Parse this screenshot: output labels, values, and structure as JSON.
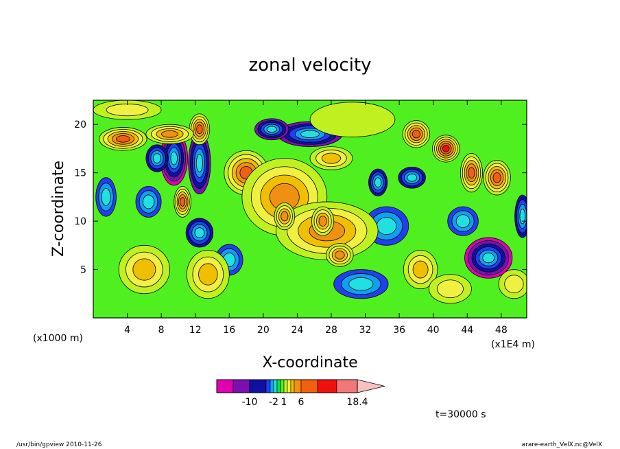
{
  "chart_data": {
    "type": "heatmap",
    "title": "zonal velocity",
    "xlabel": "X-coordinate",
    "ylabel": "Z-coordinate",
    "x_units_left": "(x1000 m)",
    "x_units_right": "(x1E4 m)",
    "x_ticks": [
      4,
      8,
      12,
      16,
      20,
      24,
      28,
      32,
      36,
      40,
      44,
      48
    ],
    "y_ticks": [
      5,
      10,
      15,
      20
    ],
    "xlim": [
      0,
      51
    ],
    "ylim": [
      0,
      22.5
    ],
    "colorbar": {
      "labels": [
        "-10",
        "-2",
        "1",
        "6",
        "18.4"
      ],
      "label_values": [
        -10,
        -2,
        1,
        6,
        18.4
      ],
      "levels": [
        -18,
        -14,
        -10,
        -6,
        -3,
        -2,
        -1,
        0,
        1,
        2,
        3,
        4,
        6,
        10,
        14,
        18.4
      ],
      "colors": [
        "#e000b0",
        "#7a10b0",
        "#1010a0",
        "#2040f0",
        "#10a0f0",
        "#20e0e0",
        "#10e040",
        "#50f020",
        "#c0f020",
        "#f0f040",
        "#f0c000",
        "#f09010",
        "#f06010",
        "#f01010",
        "#f07878",
        "#f8c0c0"
      ]
    },
    "time_label": "t=30000 s",
    "blobs": [
      {
        "x": 9.5,
        "z": 16.5,
        "v": -14,
        "rx": 1.6,
        "rz": 2.8
      },
      {
        "x": 12.5,
        "z": 16.0,
        "v": -12,
        "rx": 1.3,
        "rz": 3.2
      },
      {
        "x": 7.5,
        "z": 16.5,
        "v": -8,
        "rx": 1.3,
        "rz": 1.4
      },
      {
        "x": 12.5,
        "z": 8.8,
        "v": -9,
        "rx": 1.6,
        "rz": 1.5
      },
      {
        "x": 25.5,
        "z": 19.0,
        "v": -12,
        "rx": 3.8,
        "rz": 1.3
      },
      {
        "x": 21.0,
        "z": 19.5,
        "v": -10,
        "rx": 2.0,
        "rz": 1.1
      },
      {
        "x": 46.5,
        "z": 6.2,
        "v": -15,
        "rx": 2.8,
        "rz": 2.1
      },
      {
        "x": 33.5,
        "z": 14.0,
        "v": -7,
        "rx": 1.1,
        "rz": 1.4
      },
      {
        "x": 37.5,
        "z": 14.5,
        "v": -8,
        "rx": 1.6,
        "rz": 1.1
      },
      {
        "x": 34.5,
        "z": 9.5,
        "v": -4,
        "rx": 2.6,
        "rz": 2.0
      },
      {
        "x": 31.5,
        "z": 3.5,
        "v": -4,
        "rx": 3.2,
        "rz": 1.5
      },
      {
        "x": 6.5,
        "z": 12.0,
        "v": -5,
        "rx": 1.5,
        "rz": 1.6
      },
      {
        "x": 43.5,
        "z": 10.0,
        "v": -3,
        "rx": 1.8,
        "rz": 1.5
      },
      {
        "x": 50.5,
        "z": 10.5,
        "v": -6,
        "rx": 0.9,
        "rz": 2.2
      },
      {
        "x": 1.5,
        "z": 12.5,
        "v": -4,
        "rx": 1.2,
        "rz": 2.0
      },
      {
        "x": 16.0,
        "z": 6.0,
        "v": -3,
        "rx": 1.6,
        "rz": 1.6
      },
      {
        "x": 18.0,
        "z": 15.0,
        "v": 9,
        "rx": 2.6,
        "rz": 2.3
      },
      {
        "x": 12.5,
        "z": 19.5,
        "v": 8,
        "rx": 1.2,
        "rz": 1.6
      },
      {
        "x": 3.5,
        "z": 18.5,
        "v": 6,
        "rx": 2.8,
        "rz": 1.2
      },
      {
        "x": 9.0,
        "z": 19.0,
        "v": 5,
        "rx": 2.8,
        "rz": 1.0
      },
      {
        "x": 41.5,
        "z": 17.5,
        "v": 10,
        "rx": 1.6,
        "rz": 1.4
      },
      {
        "x": 44.5,
        "z": 15.0,
        "v": 8,
        "rx": 1.3,
        "rz": 2.0
      },
      {
        "x": 47.5,
        "z": 14.5,
        "v": 8,
        "rx": 1.6,
        "rz": 1.8
      },
      {
        "x": 38.0,
        "z": 19.0,
        "v": 6,
        "rx": 1.6,
        "rz": 1.4
      },
      {
        "x": 10.5,
        "z": 12.0,
        "v": 6,
        "rx": 1.0,
        "rz": 1.6
      },
      {
        "x": 22.5,
        "z": 12.5,
        "v": 4,
        "rx": 5.0,
        "rz": 4.0
      },
      {
        "x": 27.5,
        "z": 9.0,
        "v": 4,
        "rx": 6.0,
        "rz": 3.0
      },
      {
        "x": 29.0,
        "z": 6.5,
        "v": 5,
        "rx": 1.6,
        "rz": 1.2
      },
      {
        "x": 22.5,
        "z": 10.5,
        "v": 5,
        "rx": 1.2,
        "rz": 1.4
      },
      {
        "x": 27.0,
        "z": 10.0,
        "v": 5,
        "rx": 1.3,
        "rz": 1.5
      },
      {
        "x": 28.0,
        "z": 16.5,
        "v": 3,
        "rx": 2.5,
        "rz": 1.2
      },
      {
        "x": 6.0,
        "z": 5.0,
        "v": 3,
        "rx": 3.0,
        "rz": 2.5
      },
      {
        "x": 13.5,
        "z": 4.5,
        "v": 3,
        "rx": 2.5,
        "rz": 2.5
      },
      {
        "x": 38.5,
        "z": 5.0,
        "v": 3,
        "rx": 2.0,
        "rz": 2.0
      },
      {
        "x": 42.0,
        "z": 3.0,
        "v": 2,
        "rx": 2.5,
        "rz": 1.5
      },
      {
        "x": 49.5,
        "z": 3.5,
        "v": 2,
        "rx": 1.8,
        "rz": 1.5
      },
      {
        "x": 30.5,
        "z": 20.5,
        "v": 1,
        "rx": 5.0,
        "rz": 1.8
      },
      {
        "x": 4.0,
        "z": 21.5,
        "v": 2,
        "rx": 4.0,
        "rz": 1.0
      }
    ]
  },
  "footer": {
    "left": "/usr/bin/gpview  2010-11-26",
    "right": "arare-earth_VelX.nc@VelX"
  }
}
